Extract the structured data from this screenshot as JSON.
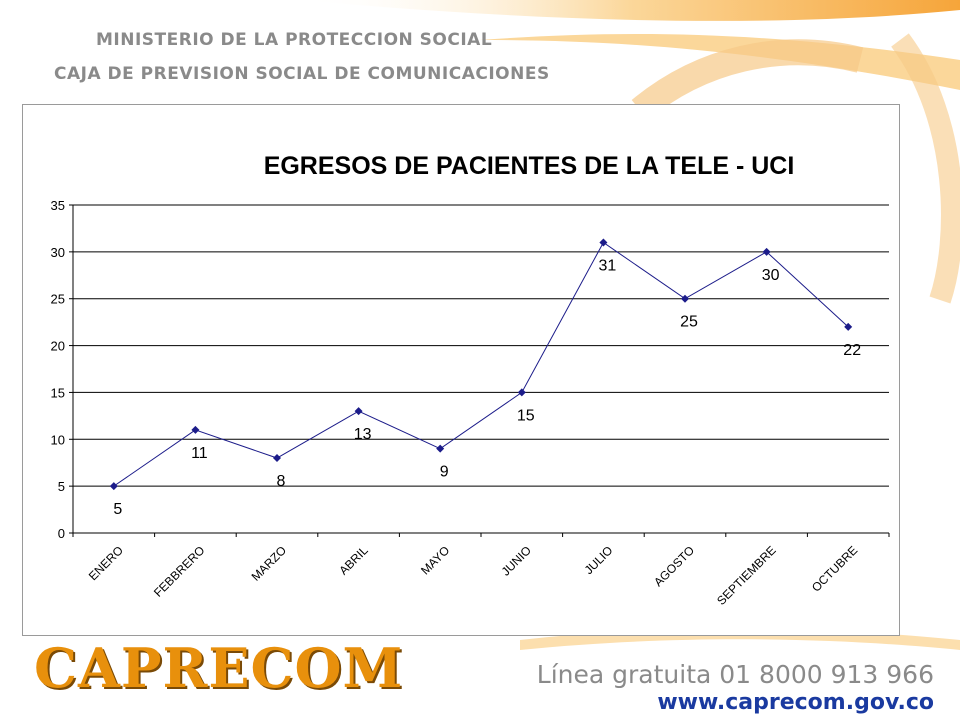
{
  "header": {
    "ministry": "MINISTERIO DE LA PROTECCION SOCIAL",
    "agency": "CAJA DE PREVISION SOCIAL DE COMUNICACIONES"
  },
  "footer": {
    "logo_text": "CAPRECOM",
    "hotline": "Línea gratuita 01 8000 913 966",
    "website": "www.caprecom.gov.co"
  },
  "colors": {
    "series": "#1c1c8a",
    "grid": "#000000",
    "accent_orange": "#f39c12"
  },
  "chart_data": {
    "type": "line",
    "title": "EGRESOS DE PACIENTES DE LA TELE - UCI",
    "xlabel": "",
    "ylabel": "",
    "categories": [
      "ENERO",
      "FEBBRERO",
      "MARZO",
      "ABRIL",
      "MAYO",
      "JUNIO",
      "JULIO",
      "AGOSTO",
      "SEPTIEMBRE",
      "OCTUBRE"
    ],
    "series": [
      {
        "values": [
          5,
          11,
          8,
          13,
          9,
          15,
          31,
          25,
          30,
          22
        ]
      }
    ],
    "ylim": [
      0,
      35
    ],
    "yticks": [
      0,
      5,
      10,
      15,
      20,
      25,
      30,
      35
    ],
    "grid": true,
    "data_labels": true,
    "legend": "none"
  }
}
